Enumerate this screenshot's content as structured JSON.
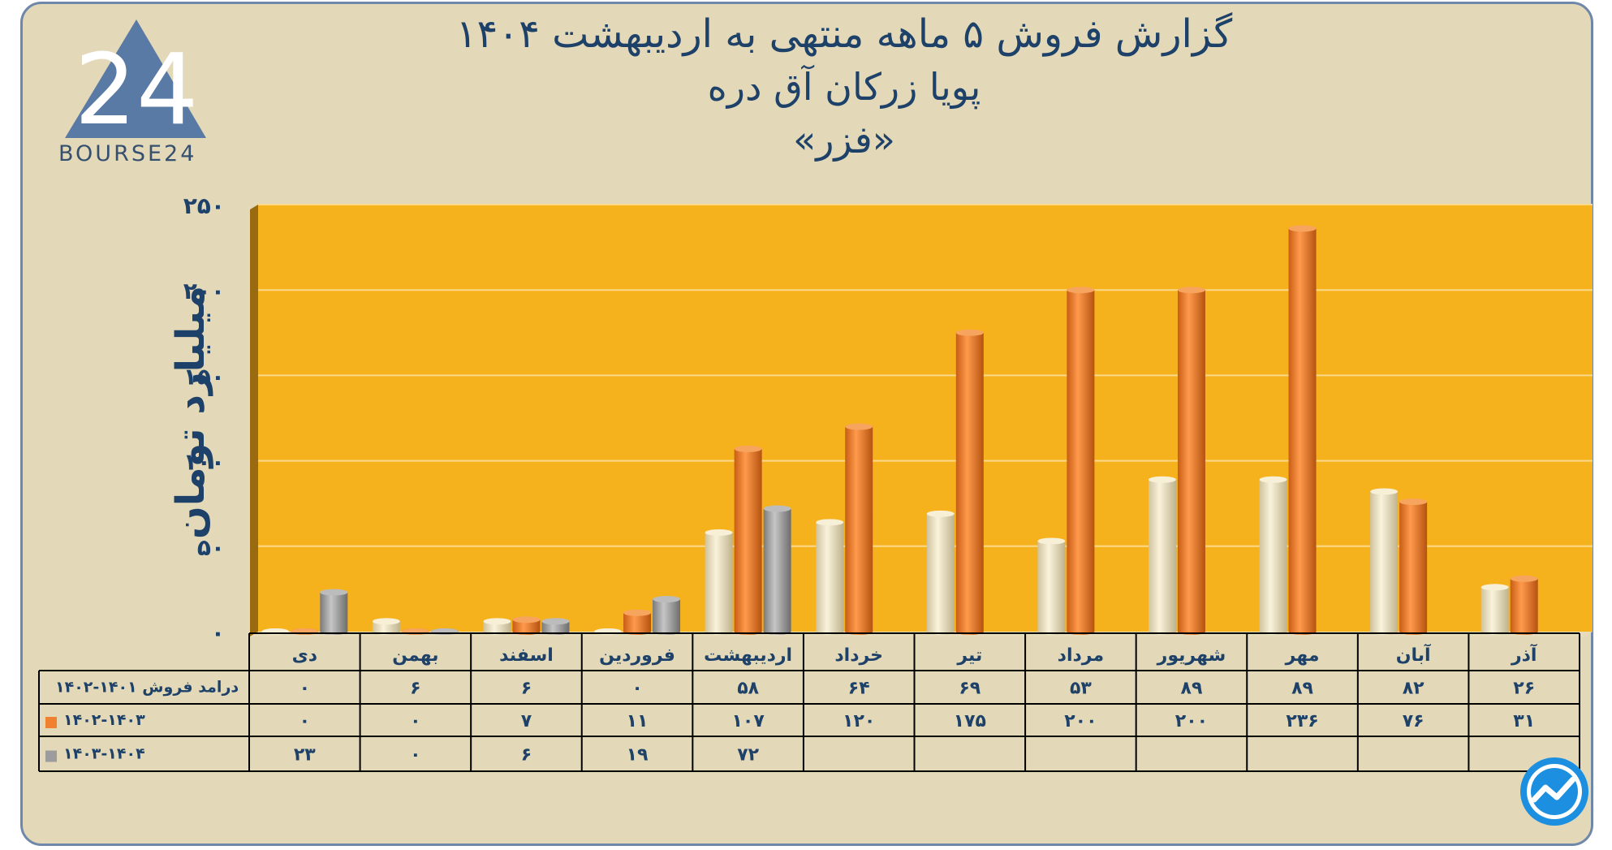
{
  "title": {
    "line1": "گزارش  فروش ۵ ماهه منتهی به اردیبهشت ۱۴۰۴",
    "line2": "پویا زرکان آق دره",
    "line3": "«فزر»"
  },
  "logo": {
    "text": "BOURSE24",
    "mark": "24"
  },
  "colors": {
    "background": "#e3d9b8",
    "plot": "#f6b21d",
    "series1": "#ece0c0",
    "series2": "#f08130",
    "series3": "#9c9c9c",
    "text": "#1d4169"
  },
  "chart_data": {
    "type": "bar",
    "ylabel": "میلیارد تومان",
    "ylim": [
      0,
      250
    ],
    "yticks": [
      0,
      50,
      100,
      150,
      200,
      250
    ],
    "ytick_labels": [
      "۰",
      "۵۰",
      "۱۰۰",
      "۱۵۰",
      "۲۰۰",
      "۲۵۰"
    ],
    "categories": [
      "دی",
      "بهمن",
      "اسفند",
      "فروردین",
      "اردیبهشت",
      "خرداد",
      "تیر",
      "مرداد",
      "شهریور",
      "مهر",
      "آبان",
      "آذر"
    ],
    "series": [
      {
        "name": "درامد فروش ۱۴۰۱-۱۴۰۲",
        "values": [
          0,
          6,
          6,
          0,
          58,
          64,
          69,
          53,
          89,
          89,
          82,
          26
        ],
        "labels": [
          "۰",
          "۶",
          "۶",
          "۰",
          "۵۸",
          "۶۴",
          "۶۹",
          "۵۳",
          "۸۹",
          "۸۹",
          "۸۲",
          "۲۶"
        ]
      },
      {
        "name": "۱۴۰۲-۱۴۰۳",
        "values": [
          0,
          0,
          7,
          11,
          107,
          120,
          175,
          200,
          200,
          236,
          76,
          31
        ],
        "labels": [
          "۰",
          "۰",
          "۷",
          "۱۱",
          "۱۰۷",
          "۱۲۰",
          "۱۷۵",
          "۲۰۰",
          "۲۰۰",
          "۲۳۶",
          "۷۶",
          "۳۱"
        ]
      },
      {
        "name": "۱۴۰۳-۱۴۰۴",
        "values": [
          23,
          0,
          6,
          19,
          72,
          null,
          null,
          null,
          null,
          null,
          null,
          null
        ],
        "labels": [
          "۲۳",
          "۰",
          "۶",
          "۱۹",
          "۷۲",
          "",
          "",
          "",
          "",
          "",
          "",
          ""
        ]
      }
    ],
    "grid": true
  }
}
